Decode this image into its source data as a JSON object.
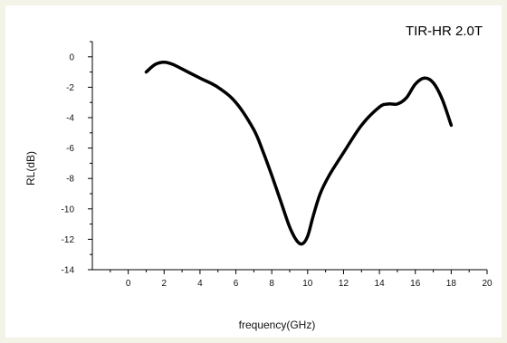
{
  "chart_data": {
    "type": "line",
    "corner_label": "TIR-HR 2.0T",
    "xlabel": "frequency(GHz)",
    "ylabel": "RL(dB)",
    "xlim": [
      -2,
      20
    ],
    "ylim": [
      -14,
      1
    ],
    "x_ticks": [
      0,
      2,
      4,
      6,
      8,
      10,
      12,
      14,
      16,
      18,
      20
    ],
    "y_ticks": [
      0,
      -2,
      -4,
      -6,
      -8,
      -10,
      -12,
      -14
    ],
    "grid": false,
    "legend": "none",
    "line_color": "#000000",
    "series": [
      {
        "x": [
          1.0,
          1.5,
          2.0,
          2.5,
          3.0,
          4.0,
          5.0,
          6.0,
          7.0,
          7.5,
          8.0,
          8.5,
          9.0,
          9.4,
          9.7,
          10.0,
          10.3,
          10.7,
          11.2,
          12.0,
          13.0,
          14.0,
          14.5,
          15.0,
          15.5,
          16.0,
          16.5,
          17.0,
          17.5,
          18.0
        ],
        "y": [
          -1.0,
          -0.5,
          -0.35,
          -0.5,
          -0.8,
          -1.4,
          -2.0,
          -3.0,
          -4.8,
          -6.2,
          -7.8,
          -9.5,
          -11.2,
          -12.1,
          -12.3,
          -11.8,
          -10.5,
          -9.0,
          -7.8,
          -6.3,
          -4.5,
          -3.3,
          -3.1,
          -3.1,
          -2.7,
          -1.8,
          -1.4,
          -1.7,
          -2.8,
          -4.5
        ]
      }
    ]
  }
}
